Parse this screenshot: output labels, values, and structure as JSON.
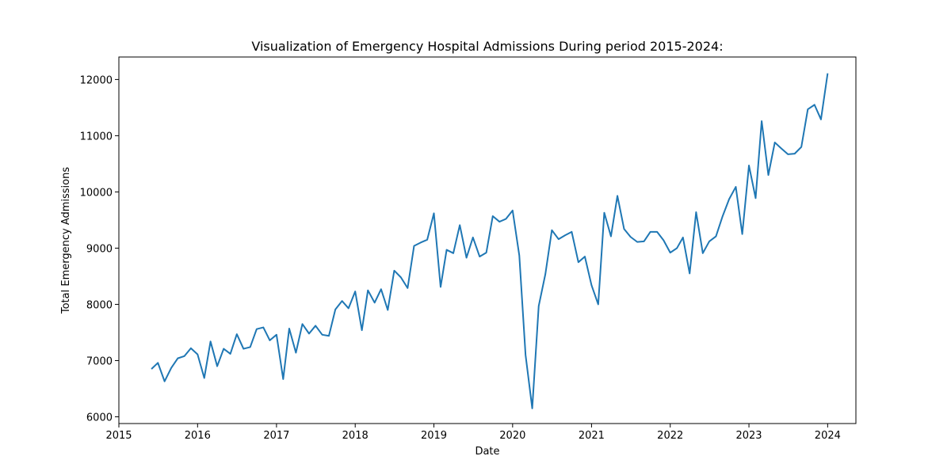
{
  "chart_data": {
    "type": "line",
    "title": "Visualization of Emergency Hospital Admissions During period 2015-2024:",
    "xlabel": "Date",
    "ylabel": "Total Emergency Admissions",
    "xlim": [
      "2015-01-01",
      "2024-05-11"
    ],
    "ylim": [
      5880,
      12400
    ],
    "x_ticks": [
      "2015",
      "2016",
      "2017",
      "2018",
      "2019",
      "2020",
      "2021",
      "2022",
      "2023",
      "2024"
    ],
    "y_ticks": [
      6000,
      7000,
      8000,
      9000,
      10000,
      11000,
      12000
    ],
    "grid": false,
    "line_color": "#1f77b4",
    "series": [
      {
        "x": [
          "2015-06",
          "2015-07",
          "2015-08",
          "2015-09",
          "2015-10",
          "2015-11",
          "2015-12",
          "2016-01",
          "2016-02",
          "2016-03",
          "2016-04",
          "2016-05",
          "2016-06",
          "2016-07",
          "2016-08",
          "2016-09",
          "2016-10",
          "2016-11",
          "2016-12",
          "2017-01",
          "2017-02",
          "2017-03",
          "2017-04",
          "2017-05",
          "2017-06",
          "2017-07",
          "2017-08",
          "2017-09",
          "2017-10",
          "2017-11",
          "2017-12",
          "2018-01",
          "2018-02",
          "2018-03",
          "2018-04",
          "2018-05",
          "2018-06",
          "2018-07",
          "2018-08",
          "2018-09",
          "2018-10",
          "2018-11",
          "2018-12",
          "2019-01",
          "2019-02",
          "2019-03",
          "2019-04",
          "2019-05",
          "2019-06",
          "2019-07",
          "2019-08",
          "2019-09",
          "2019-10",
          "2019-11",
          "2019-12",
          "2020-01",
          "2020-02",
          "2020-03",
          "2020-04",
          "2020-05",
          "2020-06",
          "2020-07",
          "2020-08",
          "2020-09",
          "2020-10",
          "2020-11",
          "2020-12",
          "2021-01",
          "2021-02",
          "2021-03",
          "2021-04",
          "2021-05",
          "2021-06",
          "2021-07",
          "2021-08",
          "2021-09",
          "2021-10",
          "2021-11",
          "2021-12",
          "2022-01",
          "2022-02",
          "2022-03",
          "2022-04",
          "2022-05",
          "2022-06",
          "2022-07",
          "2022-08",
          "2022-09",
          "2022-10",
          "2022-11",
          "2022-12",
          "2023-01",
          "2023-02",
          "2023-03",
          "2023-04",
          "2023-05",
          "2023-06",
          "2023-07",
          "2023-08",
          "2023-09",
          "2023-10",
          "2023-11",
          "2023-12",
          "2024-01"
        ],
        "y": [
          6850,
          6960,
          6630,
          6870,
          7040,
          7080,
          7220,
          7110,
          6690,
          7340,
          6900,
          7210,
          7120,
          7470,
          7210,
          7240,
          7560,
          7590,
          7360,
          7460,
          6670,
          7570,
          7140,
          7650,
          7480,
          7620,
          7460,
          7440,
          7910,
          8060,
          7930,
          8230,
          7540,
          8250,
          8030,
          8270,
          7900,
          8600,
          8480,
          8290,
          9040,
          9100,
          9150,
          9620,
          8310,
          8970,
          8910,
          9410,
          8830,
          9190,
          8850,
          8920,
          9570,
          9470,
          9520,
          9670,
          8870,
          7100,
          6150,
          7970,
          8540,
          9320,
          9160,
          9230,
          9290,
          8750,
          8850,
          8340,
          8000,
          9630,
          9210,
          9930,
          9340,
          9200,
          9110,
          9120,
          9290,
          9290,
          9140,
          8920,
          9000,
          9190,
          8550,
          9640,
          8910,
          9120,
          9210,
          9570,
          9870,
          10090,
          9250,
          10470,
          9890,
          11260,
          10300,
          10880,
          10770,
          10670,
          10680,
          10800,
          11470,
          11550,
          11290,
          12110
        ]
      }
    ]
  }
}
